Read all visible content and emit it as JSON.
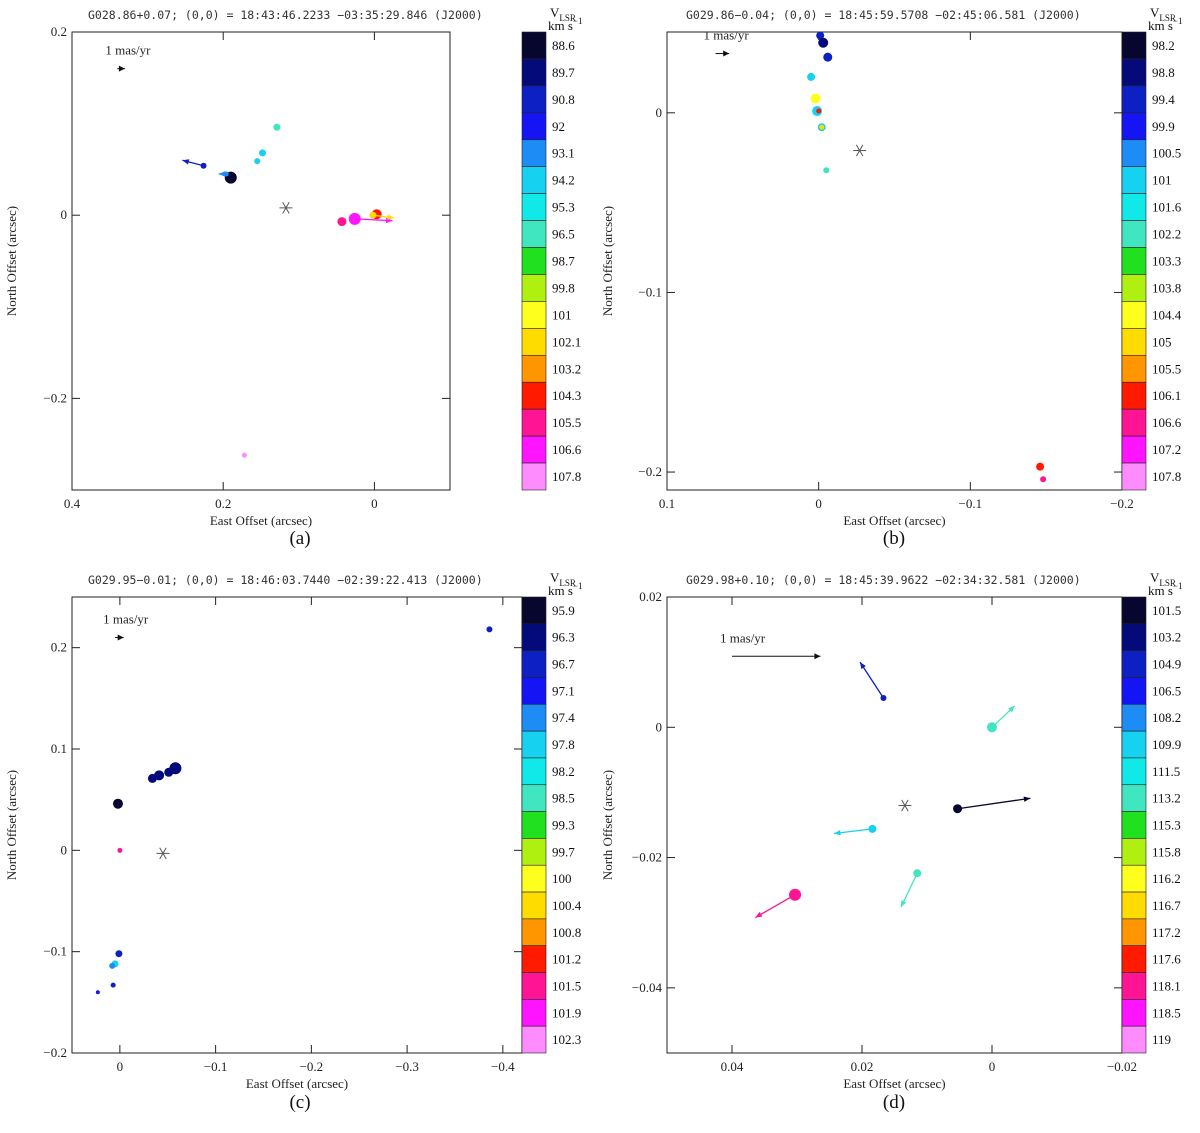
{
  "colorbar_title": "V",
  "colorbar_title_sub": "LSR",
  "colorbar_unit": "km s",
  "colorbar_unit_sup": "−1",
  "scale_label": "1 mas/yr",
  "panels": [
    {
      "header": "G028.86+0.07;   (0,0) = 18:43:46.2233   −03:35:29.846 (J2000)",
      "caption": "(a)",
      "xlabel": "East Offset (arcsec)",
      "ylabel": "North Offset (arcsec)",
      "xlim": [
        0.4,
        -0.1
      ],
      "ylim": [
        -0.3,
        0.2
      ],
      "xticks": [
        0.4,
        0.2,
        0
      ],
      "xtick_labels": [
        "0.4",
        "0.2",
        "0"
      ],
      "yticks": [
        0.2,
        0,
        -0.2
      ],
      "ytick_labels": [
        "0.2",
        "0",
        "−0.2"
      ],
      "scale_vector": {
        "x": 0.34,
        "y": 0.16,
        "dx": -0.01,
        "dy": 0
      },
      "star": {
        "x": 0.117,
        "y": 0.008
      },
      "colorbar_values": [
        "88.6",
        "89.7",
        "90.8",
        "92",
        "93.1",
        "94.2",
        "95.3",
        "96.5",
        "98.7",
        "99.8",
        "101",
        "102.1",
        "103.2",
        "104.3",
        "105.5",
        "106.6",
        "107.8"
      ],
      "spots": [
        {
          "x": 0.19,
          "y": 0.041,
          "ci": 0,
          "r": 6,
          "v": [
            0,
            0
          ]
        },
        {
          "x": 0.226,
          "y": 0.054,
          "ci": 2,
          "r": 3,
          "v": [
            0.028,
            0.006
          ]
        },
        {
          "x": 0.196,
          "y": 0.045,
          "ci": 4,
          "r": 2.5,
          "v": [
            0.01,
            0
          ]
        },
        {
          "x": 0.148,
          "y": 0.068,
          "ci": 5,
          "r": 3.5,
          "v": [
            0,
            0
          ]
        },
        {
          "x": 0.155,
          "y": 0.059,
          "ci": 5,
          "r": 3,
          "v": [
            0,
            0
          ]
        },
        {
          "x": 0.129,
          "y": 0.096,
          "ci": 7,
          "r": 3.5,
          "v": [
            0,
            0
          ]
        },
        {
          "x": 0.043,
          "y": -0.007,
          "ci": 14,
          "r": 4.5,
          "v": [
            0,
            0
          ]
        },
        {
          "x": 0.026,
          "y": -0.004,
          "ci": 15,
          "r": 6,
          "v": [
            -0.05,
            -0.002
          ]
        },
        {
          "x": -0.003,
          "y": 0.001,
          "ci": 13,
          "r": 5,
          "v": [
            0,
            0
          ]
        },
        {
          "x": 0.002,
          "y": 0.0,
          "ci": 11,
          "r": 3.5,
          "v": [
            -0.028,
            -0.003
          ]
        },
        {
          "x": 0.172,
          "y": -0.262,
          "ci": 16,
          "r": 2.5,
          "v": [
            0,
            0
          ]
        }
      ]
    },
    {
      "header": "G029.86−0.04;   (0,0) = 18:45:59.5708   −02:45:06.581 (J2000)",
      "caption": "(b)",
      "xlabel": "East Offset (arcsec)",
      "ylabel": "North Offset (arcsec)",
      "xlim": [
        0.1,
        -0.2
      ],
      "ylim": [
        -0.21,
        0.045
      ],
      "xticks": [
        0.1,
        0,
        -0.1,
        -0.2
      ],
      "xtick_labels": [
        "0.1",
        "0",
        "−0.1",
        "−0.2"
      ],
      "yticks": [
        0,
        -0.1,
        -0.2
      ],
      "ytick_labels": [
        "0",
        "−0.1",
        "−0.2"
      ],
      "scale_vector": {
        "x": 0.068,
        "y": 0.033,
        "dx": -0.009,
        "dy": 0
      },
      "star": {
        "x": -0.027,
        "y": -0.021
      },
      "colorbar_values": [
        "98.2",
        "98.8",
        "99.4",
        "99.9",
        "100.5",
        "101",
        "101.6",
        "102.2",
        "103.3",
        "103.8",
        "104.4",
        "105",
        "105.5",
        "106.1",
        "106.6",
        "107.2",
        "107.8"
      ],
      "spots": [
        {
          "x": 0.0,
          "y": 0.051,
          "ci": 1,
          "r": 5,
          "v": [
            0,
            0
          ]
        },
        {
          "x": 0.001,
          "y": 0.048,
          "ci": 0,
          "r": 4,
          "v": [
            0,
            0
          ]
        },
        {
          "x": -0.001,
          "y": 0.043,
          "ci": 2,
          "r": 4,
          "v": [
            0,
            0
          ]
        },
        {
          "x": -0.003,
          "y": 0.039,
          "ci": 1,
          "r": 5,
          "v": [
            0,
            0
          ]
        },
        {
          "x": -0.006,
          "y": 0.031,
          "ci": 2,
          "r": 4.5,
          "v": [
            0,
            0
          ]
        },
        {
          "x": 0.005,
          "y": 0.02,
          "ci": 5,
          "r": 4,
          "v": [
            0,
            0
          ]
        },
        {
          "x": 0.002,
          "y": 0.008,
          "ci": 10,
          "r": 5,
          "v": [
            0,
            0
          ]
        },
        {
          "x": 0.001,
          "y": 0.001,
          "ci": 5,
          "r": 5,
          "v": [
            0,
            0
          ]
        },
        {
          "x": 0.0,
          "y": 0.001,
          "ci": 13,
          "r": 2.5,
          "v": [
            0,
            0
          ]
        },
        {
          "x": -0.002,
          "y": -0.008,
          "ci": 5,
          "r": 4,
          "v": [
            0,
            0
          ]
        },
        {
          "x": -0.002,
          "y": -0.008,
          "ci": 11,
          "r": 2.5,
          "v": [
            0,
            0
          ]
        },
        {
          "x": -0.005,
          "y": -0.032,
          "ci": 7,
          "r": 3,
          "v": [
            0,
            0
          ]
        },
        {
          "x": -0.146,
          "y": -0.197,
          "ci": 13,
          "r": 4,
          "v": [
            0,
            0
          ]
        },
        {
          "x": -0.148,
          "y": -0.204,
          "ci": 14,
          "r": 3,
          "v": [
            0,
            0
          ]
        }
      ]
    },
    {
      "header": "G029.95−0.01;   (0,0) = 18:46:03.7440   −02:39:22.413 (J2000)",
      "caption": "(c)",
      "xlabel": "East Offset (arcsec)",
      "ylabel": "North Offset (arcsec)",
      "xlim": [
        0.05,
        -0.42
      ],
      "ylim": [
        -0.2,
        0.25
      ],
      "xticks": [
        0,
        -0.1,
        -0.2,
        -0.3,
        -0.4
      ],
      "xtick_labels": [
        "0",
        "−0.1",
        "−0.2",
        "−0.3",
        "−0.4"
      ],
      "yticks": [
        0.2,
        0.1,
        0,
        -0.1,
        -0.2
      ],
      "ytick_labels": [
        "0.2",
        "0.1",
        "0",
        "−0.1",
        "−0.2"
      ],
      "scale_vector": {
        "x": 0.005,
        "y": 0.21,
        "dx": -0.009,
        "dy": 0
      },
      "star": {
        "x": -0.045,
        "y": -0.003
      },
      "colorbar_values": [
        "95.9",
        "96.3",
        "96.7",
        "97.1",
        "97.4",
        "97.8",
        "98.2",
        "98.5",
        "99.3",
        "99.7",
        "100",
        "100.4",
        "100.8",
        "101.2",
        "101.5",
        "101.9",
        "102.3"
      ],
      "spots": [
        {
          "x": 0.002,
          "y": 0.046,
          "ci": 0,
          "r": 5,
          "v": [
            0,
            0
          ]
        },
        {
          "x": -0.034,
          "y": 0.071,
          "ci": 1,
          "r": 4.5,
          "v": [
            0,
            0
          ]
        },
        {
          "x": -0.041,
          "y": 0.074,
          "ci": 1,
          "r": 5,
          "v": [
            0,
            0
          ]
        },
        {
          "x": -0.051,
          "y": 0.077,
          "ci": 1,
          "r": 4.5,
          "v": [
            0,
            0
          ]
        },
        {
          "x": -0.058,
          "y": 0.081,
          "ci": 1,
          "r": 6,
          "v": [
            0,
            0
          ]
        },
        {
          "x": -0.386,
          "y": 0.218,
          "ci": 2,
          "r": 3,
          "v": [
            0,
            0
          ]
        },
        {
          "x": 0.0,
          "y": 0.0,
          "ci": 14,
          "r": 2.5,
          "v": [
            0,
            0
          ]
        },
        {
          "x": 0.001,
          "y": -0.102,
          "ci": 2,
          "r": 3.5,
          "v": [
            0,
            0
          ]
        },
        {
          "x": 0.005,
          "y": -0.112,
          "ci": 5,
          "r": 3.5,
          "v": [
            0,
            0
          ]
        },
        {
          "x": 0.008,
          "y": -0.114,
          "ci": 4,
          "r": 3,
          "v": [
            0,
            0
          ]
        },
        {
          "x": 0.007,
          "y": -0.133,
          "ci": 2,
          "r": 2.5,
          "v": [
            0,
            0
          ]
        },
        {
          "x": 0.023,
          "y": -0.14,
          "ci": 3,
          "r": 2,
          "v": [
            0,
            0
          ]
        }
      ]
    },
    {
      "header": "G029.98+0.10;   (0,0) = 18:45:39.9622   −02:34:32.581 (J2000)",
      "caption": "(d)",
      "xlabel": "East Offset (arcsec)",
      "ylabel": "North Offset (arcsec)",
      "xlim": [
        0.05,
        -0.02
      ],
      "ylim": [
        -0.05,
        0.02
      ],
      "xticks": [
        0.04,
        0.02,
        0,
        -0.02
      ],
      "xtick_labels": [
        "0.04",
        "0.02",
        "0",
        "−0.02"
      ],
      "yticks": [
        0.02,
        0,
        -0.02,
        -0.04
      ],
      "ytick_labels": [
        "0.02",
        "0",
        "−0.02",
        "−0.04"
      ],
      "scale_vector": {
        "x": 0.04,
        "y": 0.0109,
        "dx": -0.0136,
        "dy": 0
      },
      "star": {
        "x": 0.0134,
        "y": -0.012
      },
      "colorbar_values": [
        "101.5",
        "103.2",
        "104.9",
        "106.5",
        "108.2",
        "109.9",
        "111.5",
        "113.2",
        "115.3",
        "115.8",
        "116.2",
        "116.7",
        "117.2",
        "117.6",
        "118.1",
        "118.5",
        "119"
      ],
      "spots": [
        {
          "x": 0.0167,
          "y": 0.0045,
          "ci": 2,
          "r": 3,
          "v": [
            0.0036,
            0.0055
          ]
        },
        {
          "x": 0.0,
          "y": 0.0,
          "ci": 7,
          "r": 5,
          "v": [
            -0.0035,
            0.0033
          ]
        },
        {
          "x": 0.0053,
          "y": -0.0125,
          "ci": 0,
          "r": 4.5,
          "v": [
            -0.0112,
            0.0016
          ]
        },
        {
          "x": 0.0184,
          "y": -0.0156,
          "ci": 5,
          "r": 4,
          "v": [
            0.0059,
            -0.0007
          ]
        },
        {
          "x": 0.0115,
          "y": -0.0224,
          "ci": 7,
          "r": 4,
          "v": [
            0.0025,
            -0.0052
          ]
        },
        {
          "x": 0.0303,
          "y": -0.0257,
          "ci": 14,
          "r": 6,
          "v": [
            0.0061,
            -0.0035
          ]
        }
      ]
    }
  ]
}
